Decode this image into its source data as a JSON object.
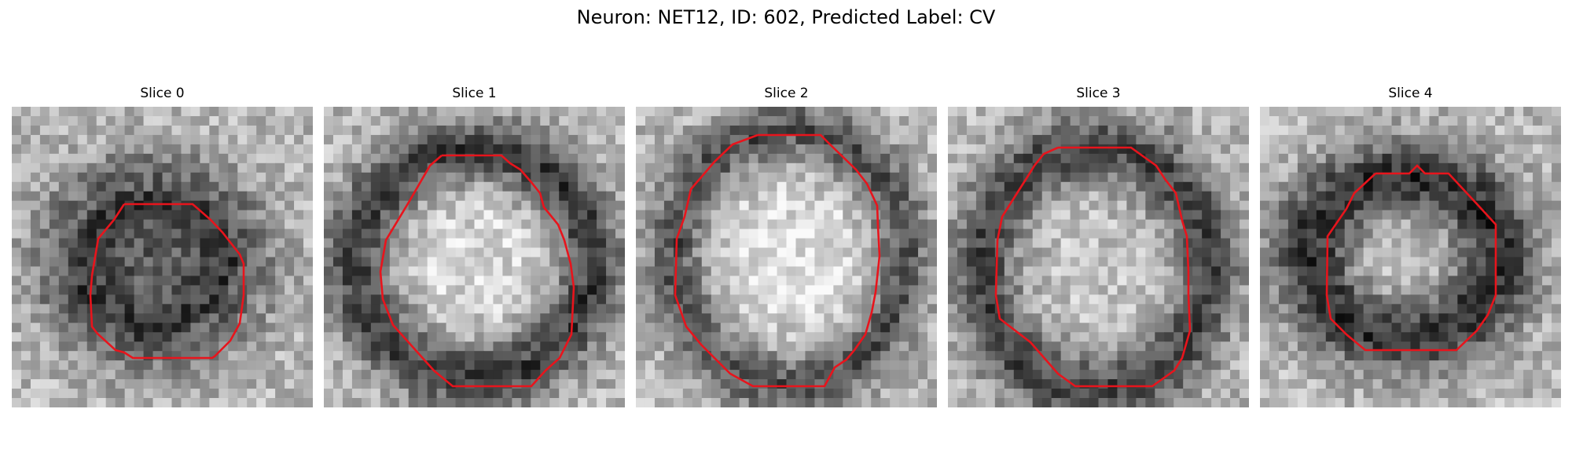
{
  "figure": {
    "title": "Neuron: NET12, ID: 602, Predicted Label: CV"
  },
  "colors": {
    "contour": "#e8141c",
    "background": "#ffffff"
  },
  "panels": [
    {
      "title": "Slice 0"
    },
    {
      "title": "Slice 1"
    },
    {
      "title": "Slice 2"
    },
    {
      "title": "Slice 3"
    },
    {
      "title": "Slice 4"
    }
  ]
}
